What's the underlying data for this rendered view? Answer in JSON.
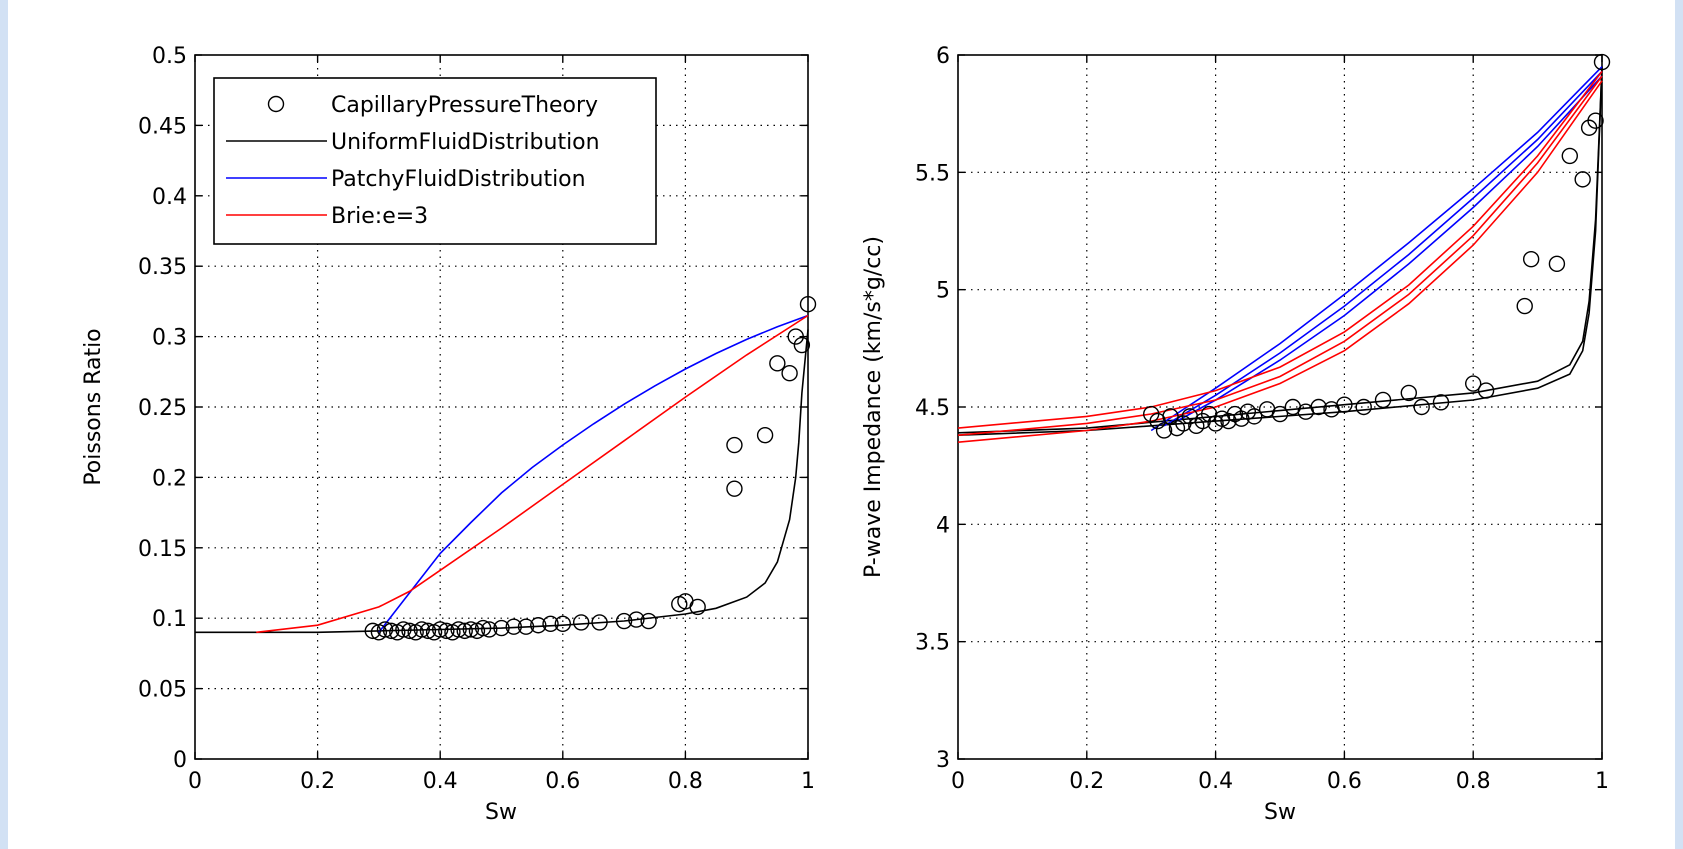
{
  "chart_data": [
    {
      "type": "line",
      "xlabel": "Sw",
      "ylabel": "Poissons Ratio",
      "xlim": [
        0,
        1
      ],
      "ylim": [
        0,
        0.5
      ],
      "xticks": [
        0,
        0.2,
        0.4,
        0.6,
        0.8,
        1
      ],
      "xtick_labels": [
        "0",
        "0.2",
        "0.4",
        "0.6",
        "0.8",
        "1"
      ],
      "yticks": [
        0,
        0.05,
        0.1,
        0.15,
        0.2,
        0.25,
        0.3,
        0.35,
        0.4,
        0.45,
        0.5
      ],
      "ytick_labels": [
        "0",
        "0.05",
        "0.1",
        "0.15",
        "0.2",
        "0.25",
        "0.3",
        "0.35",
        "0.4",
        "0.45",
        "0.5"
      ],
      "grid": true,
      "legend_position": "top-left",
      "series": [
        {
          "name": "CapillaryPressureTheory",
          "style": "marker-circle",
          "color": "#000000",
          "x": [
            0.29,
            0.3,
            0.31,
            0.32,
            0.33,
            0.34,
            0.35,
            0.36,
            0.37,
            0.38,
            0.39,
            0.4,
            0.41,
            0.42,
            0.43,
            0.44,
            0.45,
            0.46,
            0.47,
            0.48,
            0.5,
            0.52,
            0.54,
            0.56,
            0.58,
            0.6,
            0.63,
            0.66,
            0.7,
            0.72,
            0.74,
            0.79,
            0.8,
            0.82,
            0.88,
            0.88,
            0.93,
            0.95,
            0.97,
            0.98,
            0.99,
            1.0
          ],
          "y": [
            0.091,
            0.09,
            0.092,
            0.091,
            0.09,
            0.092,
            0.091,
            0.09,
            0.092,
            0.091,
            0.09,
            0.092,
            0.091,
            0.09,
            0.092,
            0.091,
            0.092,
            0.091,
            0.093,
            0.092,
            0.093,
            0.094,
            0.094,
            0.095,
            0.096,
            0.096,
            0.097,
            0.097,
            0.098,
            0.099,
            0.098,
            0.11,
            0.112,
            0.108,
            0.192,
            0.223,
            0.23,
            0.281,
            0.274,
            0.3,
            0.294,
            0.323
          ]
        },
        {
          "name": "UniformFluidDistribution",
          "style": "line",
          "color": "#000000",
          "x": [
            0,
            0.1,
            0.2,
            0.3,
            0.4,
            0.5,
            0.6,
            0.7,
            0.8,
            0.85,
            0.9,
            0.93,
            0.95,
            0.96,
            0.97,
            0.98,
            0.985,
            0.99,
            1.0
          ],
          "y": [
            0.09,
            0.09,
            0.09,
            0.091,
            0.092,
            0.093,
            0.095,
            0.098,
            0.103,
            0.107,
            0.115,
            0.125,
            0.14,
            0.155,
            0.17,
            0.2,
            0.225,
            0.26,
            0.305
          ]
        },
        {
          "name": "PatchyFluidDistribution",
          "style": "line",
          "color": "#0000ff",
          "x": [
            0.3,
            0.35,
            0.4,
            0.45,
            0.5,
            0.55,
            0.6,
            0.65,
            0.7,
            0.75,
            0.8,
            0.85,
            0.9,
            0.95,
            1.0
          ],
          "y": [
            0.09,
            0.118,
            0.146,
            0.168,
            0.189,
            0.207,
            0.223,
            0.238,
            0.252,
            0.265,
            0.277,
            0.288,
            0.298,
            0.307,
            0.315
          ]
        },
        {
          "name": "Brie:e=3",
          "style": "line",
          "color": "#ff0000",
          "x": [
            0.1,
            0.2,
            0.3,
            0.35,
            0.4,
            0.5,
            0.6,
            0.7,
            0.8,
            0.9,
            1.0
          ],
          "y": [
            0.09,
            0.095,
            0.108,
            0.119,
            0.134,
            0.164,
            0.195,
            0.226,
            0.257,
            0.287,
            0.315
          ]
        }
      ]
    },
    {
      "type": "line",
      "xlabel": "Sw",
      "ylabel": "P-wave Impedance (km/s*g/cc)",
      "xlim": [
        0,
        1
      ],
      "ylim": [
        3,
        6
      ],
      "xticks": [
        0,
        0.2,
        0.4,
        0.6,
        0.8,
        1
      ],
      "xtick_labels": [
        "0",
        "0.2",
        "0.4",
        "0.6",
        "0.8",
        "1"
      ],
      "yticks": [
        3,
        3.5,
        4,
        4.5,
        5,
        5.5,
        6
      ],
      "ytick_labels": [
        "3",
        "3.5",
        "4",
        "4.5",
        "5",
        "5.5",
        "6"
      ],
      "grid": true,
      "series": [
        {
          "style": "marker-circle",
          "color": "#000000",
          "x": [
            0.3,
            0.31,
            0.32,
            0.33,
            0.34,
            0.35,
            0.36,
            0.37,
            0.38,
            0.39,
            0.4,
            0.41,
            0.42,
            0.43,
            0.44,
            0.45,
            0.46,
            0.48,
            0.5,
            0.52,
            0.54,
            0.56,
            0.58,
            0.6,
            0.63,
            0.66,
            0.7,
            0.72,
            0.75,
            0.8,
            0.82,
            0.88,
            0.89,
            0.93,
            0.95,
            0.97,
            0.98,
            0.99,
            1.0
          ],
          "y": [
            4.47,
            4.44,
            4.4,
            4.46,
            4.41,
            4.43,
            4.46,
            4.42,
            4.44,
            4.47,
            4.43,
            4.45,
            4.44,
            4.47,
            4.45,
            4.48,
            4.46,
            4.49,
            4.47,
            4.5,
            4.48,
            4.5,
            4.49,
            4.51,
            4.5,
            4.53,
            4.56,
            4.5,
            4.52,
            4.6,
            4.57,
            4.93,
            5.13,
            5.11,
            5.57,
            5.47,
            5.69,
            5.72,
            5.97
          ]
        },
        {
          "style": "line",
          "color": "#000000",
          "x": [
            0,
            0.2,
            0.4,
            0.6,
            0.8,
            0.9,
            0.95,
            0.97,
            0.98,
            0.99,
            1.0
          ],
          "y": [
            4.39,
            4.41,
            4.46,
            4.51,
            4.56,
            4.61,
            4.68,
            4.78,
            4.95,
            5.3,
            5.95
          ]
        },
        {
          "style": "line",
          "color": "#000000",
          "x": [
            0,
            0.2,
            0.4,
            0.6,
            0.8,
            0.9,
            0.95,
            0.97,
            0.98,
            0.99,
            1.0
          ],
          "y": [
            4.38,
            4.4,
            4.44,
            4.48,
            4.53,
            4.58,
            4.64,
            4.74,
            4.9,
            5.25,
            5.95
          ]
        },
        {
          "style": "line",
          "color": "#0000ff",
          "x": [
            0.3,
            0.4,
            0.5,
            0.6,
            0.7,
            0.8,
            0.9,
            1.0
          ],
          "y": [
            4.4,
            4.58,
            4.77,
            4.98,
            5.2,
            5.43,
            5.67,
            5.95
          ]
        },
        {
          "style": "line",
          "color": "#0000ff",
          "x": [
            0.32,
            0.4,
            0.5,
            0.6,
            0.7,
            0.8,
            0.9,
            1.0
          ],
          "y": [
            4.42,
            4.55,
            4.73,
            4.93,
            5.15,
            5.39,
            5.64,
            5.93
          ]
        },
        {
          "style": "line",
          "color": "#0000ff",
          "x": [
            0.34,
            0.4,
            0.5,
            0.6,
            0.7,
            0.8,
            0.9,
            1.0
          ],
          "y": [
            4.44,
            4.53,
            4.7,
            4.89,
            5.11,
            5.35,
            5.61,
            5.91
          ]
        },
        {
          "style": "line",
          "color": "#ff0000",
          "x": [
            0,
            0.2,
            0.3,
            0.4,
            0.5,
            0.6,
            0.7,
            0.8,
            0.9,
            1.0
          ],
          "y": [
            4.41,
            4.46,
            4.5,
            4.57,
            4.67,
            4.82,
            5.02,
            5.27,
            5.57,
            5.93
          ]
        },
        {
          "style": "line",
          "color": "#ff0000",
          "x": [
            0,
            0.2,
            0.3,
            0.4,
            0.5,
            0.6,
            0.7,
            0.8,
            0.9,
            1.0
          ],
          "y": [
            4.38,
            4.43,
            4.47,
            4.53,
            4.63,
            4.78,
            4.98,
            5.23,
            5.54,
            5.91
          ]
        },
        {
          "style": "line",
          "color": "#ff0000",
          "x": [
            0,
            0.2,
            0.3,
            0.4,
            0.5,
            0.6,
            0.7,
            0.8,
            0.9,
            1.0
          ],
          "y": [
            4.35,
            4.4,
            4.44,
            4.5,
            4.6,
            4.74,
            4.94,
            5.19,
            5.5,
            5.89
          ]
        }
      ]
    }
  ]
}
